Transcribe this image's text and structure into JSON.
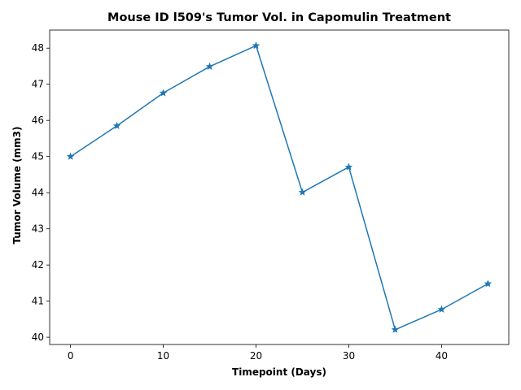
{
  "chart_data": {
    "type": "line",
    "title": "Mouse ID l509's Tumor Vol. in Capomulin Treatment",
    "xlabel": "Timepoint (Days)",
    "ylabel": "Tumor Volume (mm3)",
    "x": [
      0,
      5,
      10,
      15,
      20,
      25,
      30,
      35,
      40,
      45
    ],
    "series": [
      {
        "values": [
          45.0,
          45.85,
          46.76,
          47.49,
          48.07,
          44.01,
          44.71,
          40.21,
          40.77,
          41.48
        ],
        "color": "#1f77b4",
        "marker": "star"
      }
    ],
    "xlim": [
      -2.25,
      47.25
    ],
    "ylim": [
      39.8,
      48.5
    ],
    "xticks": [
      0,
      10,
      20,
      30,
      40
    ],
    "yticks": [
      40,
      41,
      42,
      43,
      44,
      45,
      46,
      47,
      48
    ],
    "grid": false,
    "legend": "none"
  }
}
